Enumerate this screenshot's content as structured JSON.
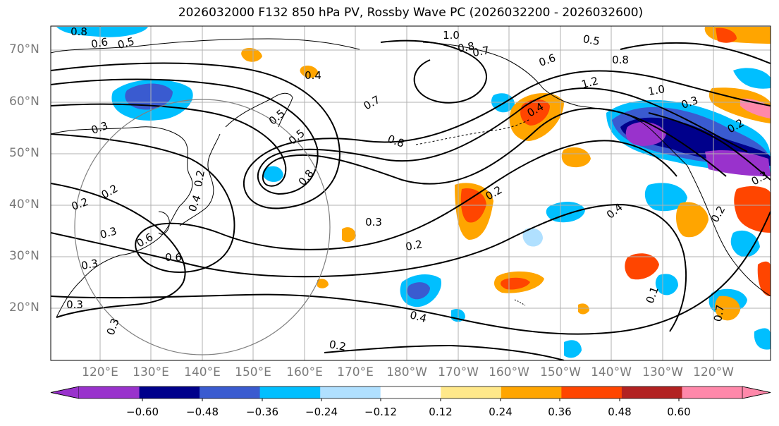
{
  "figure": {
    "title": "2026032000 F132 850 hPa PV, Rossby Wave PC (2026032200 - 2026032600)"
  },
  "map": {
    "projection": "cylindrical",
    "region": "North Pacific",
    "gridlines": true,
    "lat_ticks": [
      "70°N",
      "60°N",
      "50°N",
      "40°N",
      "30°N",
      "20°N"
    ],
    "lon_ticks": [
      "120°E",
      "130°E",
      "140°E",
      "150°E",
      "160°E",
      "170°E",
      "180°W",
      "170°W",
      "160°W",
      "150°W",
      "140°W",
      "130°W",
      "120°W"
    ],
    "contour_labels": [
      "0.8",
      "0.6",
      "0.5",
      "1.0",
      "0.8",
      "0.7",
      "0.5",
      "0.8",
      "0.6",
      "1.2",
      "0.4",
      "0.7",
      "0.5",
      "0.5",
      "0.8",
      "0.8",
      "0.3",
      "0.2",
      "0.2",
      "0.3",
      "0.4",
      "0.3",
      "0.6",
      "0.3",
      "0.6",
      "0.2",
      "0.3",
      "0.4",
      "0.2",
      "0.3",
      "0.2",
      "0.2",
      "0.4",
      "0.3",
      "0.2",
      "0.3",
      "0.1",
      "0.7",
      "1.0",
      "0.4",
      "0.2"
    ],
    "colors": {
      "coast": "#000000",
      "contour": "#000000",
      "grid": "#b0b0b0",
      "circle": "#808080"
    }
  },
  "colorbar": {
    "ticks": [
      "−0.60",
      "−0.48",
      "−0.36",
      "−0.24",
      "−0.12",
      "0.12",
      "0.24",
      "0.36",
      "0.48",
      "0.60"
    ],
    "colors": [
      "#9932cc",
      "#00008b",
      "#3a5bd0",
      "#00bfff",
      "#b0e0ff",
      "#ffffff",
      "#ffe88a",
      "#ffa500",
      "#ff4500",
      "#b22222",
      "#ff88aa",
      "#ff88aa"
    ],
    "extend": "both"
  }
}
